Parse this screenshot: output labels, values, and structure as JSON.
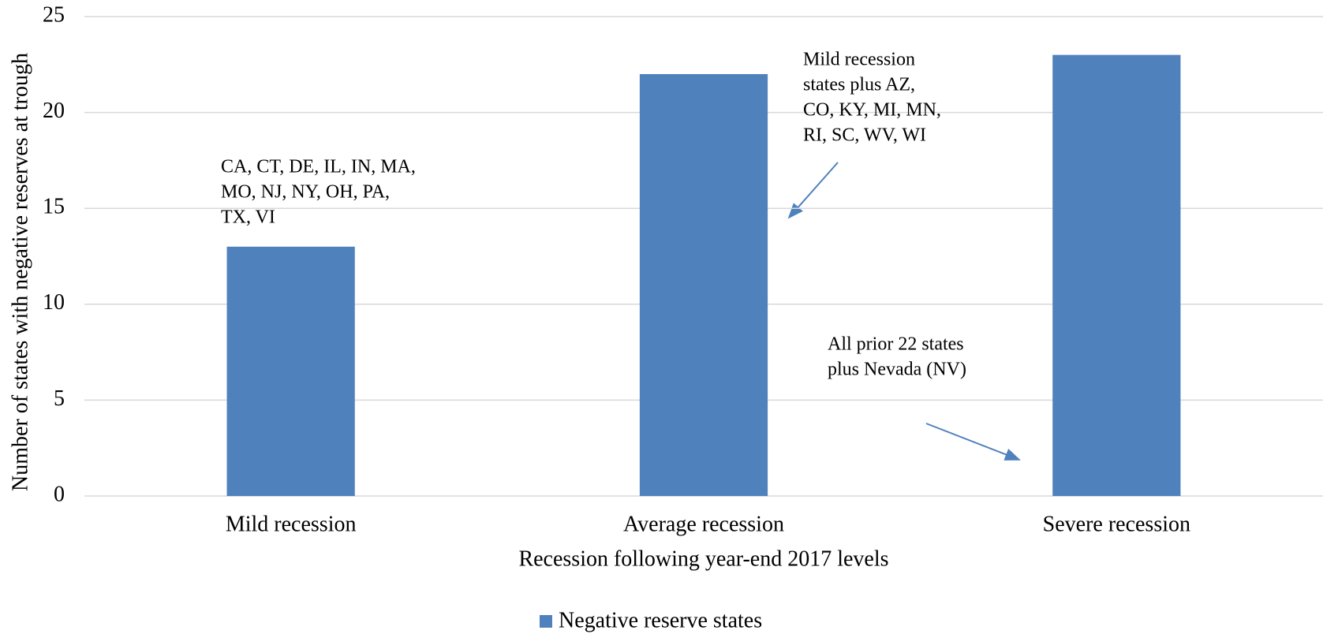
{
  "chart_data": {
    "type": "bar",
    "y_label": "Number of states with negative reserves at trough",
    "x_label": "Recession following year-end 2017 levels",
    "categories": [
      "Mild recession",
      "Average recession",
      "Severe recession"
    ],
    "series": [
      {
        "name": "Negative reserve states",
        "color": "#4f81bd",
        "values": [
          13,
          22,
          23
        ]
      }
    ],
    "ylim": [
      0,
      25
    ],
    "yticks": [
      0,
      5,
      10,
      15,
      20,
      25
    ],
    "grid": true,
    "legend": "bottom",
    "annotations": [
      {
        "lines": [
          "CA, CT, DE, IL, IN, MA,",
          "MO, NJ, NY, OH, PA,",
          "TX, VI"
        ]
      },
      {
        "lines": [
          "Mild recession",
          "states plus AZ,",
          "CO, KY, MI, MN,",
          "RI, SC, WV, WI"
        ]
      },
      {
        "lines": [
          "All prior 22 states",
          "plus Nevada (NV)"
        ]
      }
    ]
  }
}
